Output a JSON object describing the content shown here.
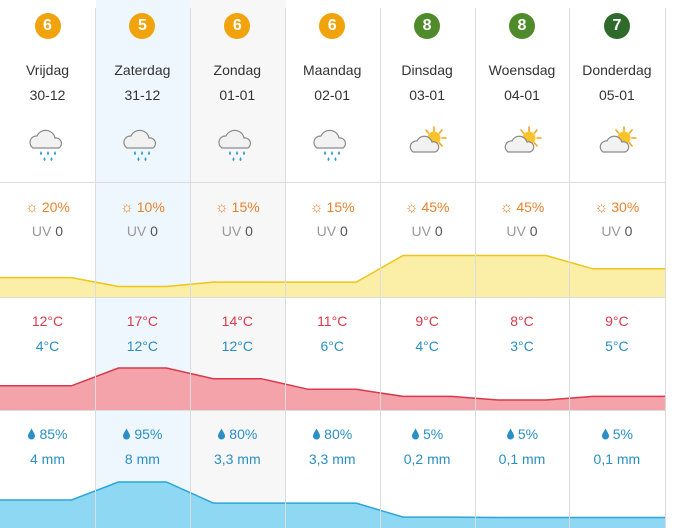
{
  "days": [
    {
      "score": "6",
      "score_color": "#f0a30a",
      "name": "Vrijdag",
      "date": "30-12",
      "icon": "cloud-rain-icon",
      "sun": "20%",
      "uv": "0",
      "tmax": "12°C",
      "tmin": "4°C",
      "rain_pct": "85%",
      "rain_mm": "4 mm"
    },
    {
      "score": "5",
      "score_color": "#f0a30a",
      "name": "Zaterdag",
      "date": "31-12",
      "icon": "cloud-rain-icon",
      "sun": "10%",
      "uv": "0",
      "tmax": "17°C",
      "tmin": "12°C",
      "rain_pct": "95%",
      "rain_mm": "8 mm"
    },
    {
      "score": "6",
      "score_color": "#f0a30a",
      "name": "Zondag",
      "date": "01-01",
      "icon": "cloud-rain-icon",
      "sun": "15%",
      "uv": "0",
      "tmax": "14°C",
      "tmin": "12°C",
      "rain_pct": "80%",
      "rain_mm": "3,3 mm"
    },
    {
      "score": "6",
      "score_color": "#f0a30a",
      "name": "Maandag",
      "date": "02-01",
      "icon": "cloud-rain-icon",
      "sun": "15%",
      "uv": "0",
      "tmax": "11°C",
      "tmin": "6°C",
      "rain_pct": "80%",
      "rain_mm": "3,3 mm"
    },
    {
      "score": "8",
      "score_color": "#4f8a2b",
      "name": "Dinsdag",
      "date": "03-01",
      "icon": "sun-cloud-icon",
      "sun": "45%",
      "uv": "0",
      "tmax": "9°C",
      "tmin": "4°C",
      "rain_pct": "5%",
      "rain_mm": "0,2 mm"
    },
    {
      "score": "8",
      "score_color": "#4f8a2b",
      "name": "Woensdag",
      "date": "04-01",
      "icon": "sun-cloud-icon",
      "sun": "45%",
      "uv": "0",
      "tmax": "8°C",
      "tmin": "3°C",
      "rain_pct": "5%",
      "rain_mm": "0,1 mm"
    },
    {
      "score": "7",
      "score_color": "#2e6b2a",
      "name": "Donderdag",
      "date": "05-01",
      "icon": "sun-cloud-icon",
      "sun": "30%",
      "uv": "0",
      "tmax": "9°C",
      "tmin": "5°C",
      "rain_pct": "5%",
      "rain_mm": "0,1 mm"
    }
  ],
  "labels": {
    "uv": "UV"
  },
  "colors": {
    "sun_text": "#e9822f",
    "sun_fill": "#fbeea6",
    "sun_line": "#f0c419",
    "temp_max_text": "#d9394a",
    "temp_fill": "#f4a3aa",
    "temp_line": "#d9394a",
    "rain_text": "#2a8fc4",
    "rain_fill": "#8fd8f4",
    "rain_line": "#2aa6dc",
    "highlight_today": "#eef7fd",
    "highlight_grey": "#f7f7f7"
  },
  "chart_data": [
    {
      "type": "area",
      "title": "",
      "x": [
        "30-12",
        "31-12",
        "01-01",
        "02-01",
        "03-01",
        "04-01",
        "05-01"
      ],
      "series": [
        {
          "values": [
            20,
            10,
            15,
            15,
            45,
            45,
            30
          ]
        }
      ],
      "ylim": [
        0,
        100
      ],
      "grid": false
    },
    {
      "type": "area",
      "title": "",
      "x": [
        "30-12",
        "31-12",
        "01-01",
        "02-01",
        "03-01",
        "04-01",
        "05-01"
      ],
      "series": [
        {
          "values": [
            12,
            17,
            14,
            11,
            9,
            8,
            9
          ]
        }
      ],
      "grid": false
    },
    {
      "type": "area",
      "title": "",
      "x": [
        "30-12",
        "31-12",
        "01-01",
        "02-01",
        "03-01",
        "04-01",
        "05-01"
      ],
      "series": [
        {
          "values": [
            4,
            8,
            3.3,
            3.3,
            0.2,
            0.1,
            0.1
          ]
        }
      ],
      "grid": false
    }
  ]
}
